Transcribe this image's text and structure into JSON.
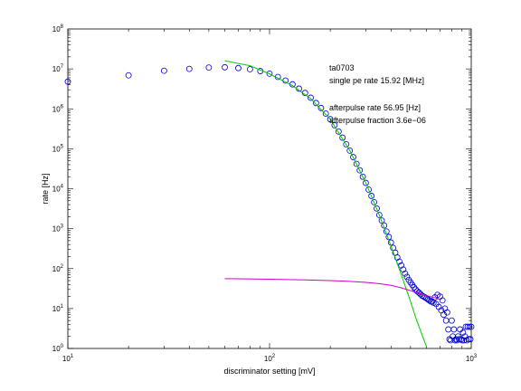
{
  "chart_data": {
    "type": "scatter",
    "title": "",
    "xlabel": "discriminator setting [mV]",
    "ylabel": "rate [Hz]",
    "xscale": "log",
    "yscale": "log",
    "xlim": [
      10,
      1000
    ],
    "ylim": [
      1,
      100000000
    ],
    "x_ticks": [
      {
        "value": 10,
        "base": "10",
        "exp": "1"
      },
      {
        "value": 100,
        "base": "10",
        "exp": "2"
      },
      {
        "value": 1000,
        "base": "10",
        "exp": "3"
      }
    ],
    "y_ticks": [
      {
        "value": 1,
        "base": "10",
        "exp": "0"
      },
      {
        "value": 10,
        "base": "10",
        "exp": "1"
      },
      {
        "value": 100,
        "base": "10",
        "exp": "2"
      },
      {
        "value": 1000,
        "base": "10",
        "exp": "3"
      },
      {
        "value": 10000,
        "base": "10",
        "exp": "4"
      },
      {
        "value": 100000,
        "base": "10",
        "exp": "5"
      },
      {
        "value": 1000000,
        "base": "10",
        "exp": "6"
      },
      {
        "value": 10000000,
        "base": "10",
        "exp": "7"
      },
      {
        "value": 100000000,
        "base": "10",
        "exp": "8"
      }
    ],
    "grid": false,
    "colors": {
      "data": "#0000cc",
      "fit_single_pe": "#00cc00",
      "fit_afterpulse": "#cc00cc"
    },
    "annotations": [
      "ta0703",
      "single pe rate 15.92 [MHz]",
      "afterpulse rate 56.95 [Hz]",
      "afterpulse fraction 3.6e−06"
    ],
    "series": [
      {
        "kind": "markers",
        "color": "#0000cc",
        "points": [
          [
            10,
            4800000.0
          ],
          [
            20,
            6900000.0
          ],
          [
            30,
            9000000.0
          ],
          [
            40,
            10000000.0
          ],
          [
            50,
            10800000.0
          ],
          [
            60,
            11000000.0
          ],
          [
            70,
            10500000.0
          ],
          [
            80,
            9800000.0
          ],
          [
            90,
            8800000.0
          ],
          [
            100,
            7600000.0
          ],
          [
            110,
            6300000.0
          ],
          [
            120,
            5100000.0
          ],
          [
            130,
            4100000.0
          ],
          [
            140,
            3200000.0
          ],
          [
            150,
            2500000.0
          ],
          [
            160,
            1900000.0
          ],
          [
            170,
            1400000.0
          ],
          [
            180,
            1050000.0
          ],
          [
            190,
            760000.0
          ],
          [
            200,
            550000.0
          ],
          [
            210,
            390000.0
          ],
          [
            220,
            270000.0
          ],
          [
            230,
            190000.0
          ],
          [
            240,
            130000.0
          ],
          [
            250,
            90000.0
          ],
          [
            260,
            62000.0
          ],
          [
            270,
            42000.0
          ],
          [
            280,
            29000.0
          ],
          [
            290,
            20000.0
          ],
          [
            300,
            14000.0
          ],
          [
            310,
            9500.0
          ],
          [
            320,
            6600.0
          ],
          [
            330,
            4600.0
          ],
          [
            340,
            3200.0
          ],
          [
            350,
            2200.0
          ],
          [
            360,
            1600.0
          ],
          [
            370,
            1200.0
          ],
          [
            380,
            850.0
          ],
          [
            390,
            620.0
          ],
          [
            400,
            450.0
          ],
          [
            410,
            330.0
          ],
          [
            420,
            250.0
          ],
          [
            430,
            190.0
          ],
          [
            440,
            150.0
          ],
          [
            450,
            120.0
          ],
          [
            460,
            95.0
          ],
          [
            470,
            75.0
          ],
          [
            480,
            62.0
          ],
          [
            490,
            52.0
          ],
          [
            500,
            45.0
          ],
          [
            510,
            39.0
          ],
          [
            520,
            34.0
          ],
          [
            530,
            30.0
          ],
          [
            540,
            27.0
          ],
          [
            550,
            25.0
          ],
          [
            560,
            23.0
          ],
          [
            570,
            21.0
          ],
          [
            580,
            20.0
          ],
          [
            590,
            19.0
          ],
          [
            600,
            18.0
          ],
          [
            610,
            17.0
          ],
          [
            620,
            16.0
          ],
          [
            630,
            15.0
          ],
          [
            640,
            15.0
          ],
          [
            650,
            14.0
          ],
          [
            660,
            19.0
          ],
          [
            670,
            13.0
          ],
          [
            680,
            22.0
          ],
          [
            690,
            11.0
          ],
          [
            700,
            20.0
          ],
          [
            710,
            9.0
          ],
          [
            720,
            16.0
          ],
          [
            730,
            7.0
          ],
          [
            740,
            10.0
          ],
          [
            750,
            5.0
          ],
          [
            760,
            8.0
          ],
          [
            770,
            3.0
          ],
          [
            780,
            1.7
          ],
          [
            790,
            1.6
          ],
          [
            800,
            5.0
          ],
          [
            810,
            2.0
          ],
          [
            820,
            3.0
          ],
          [
            830,
            1.6
          ],
          [
            840,
            1.7
          ],
          [
            850,
            1.6
          ],
          [
            860,
            2.0
          ],
          [
            870,
            1.7
          ],
          [
            880,
            3.0
          ],
          [
            890,
            1.7
          ],
          [
            900,
            1.6
          ],
          [
            910,
            2.5
          ],
          [
            920,
            1.6
          ],
          [
            930,
            2.0
          ],
          [
            940,
            3.5
          ],
          [
            950,
            1.6
          ],
          [
            960,
            3.5
          ],
          [
            970,
            1.7
          ],
          [
            980,
            3.5
          ],
          [
            990,
            1.7
          ],
          [
            1000,
            3.5
          ]
        ]
      },
      {
        "kind": "line",
        "color": "#00cc00",
        "points": [
          [
            60,
            16000000.0
          ],
          [
            80,
            12000000.0
          ],
          [
            100,
            7500000.0
          ],
          [
            130,
            3800000.0
          ],
          [
            160,
            1800000.0
          ],
          [
            200,
            550000.0
          ],
          [
            250,
            90000.0
          ],
          [
            300,
            14000.0
          ],
          [
            350,
            2200.0
          ],
          [
            400,
            370.0
          ],
          [
            450,
            70.0
          ],
          [
            500,
            15.0
          ],
          [
            530,
            6.0
          ],
          [
            560,
            2.8
          ],
          [
            600,
            1.1
          ]
        ]
      },
      {
        "kind": "line",
        "color": "#cc00cc",
        "points": [
          [
            60,
            56
          ],
          [
            100,
            54
          ],
          [
            150,
            52
          ],
          [
            200,
            50
          ],
          [
            250,
            48
          ],
          [
            300,
            45
          ],
          [
            350,
            42
          ],
          [
            400,
            38
          ],
          [
            450,
            33
          ],
          [
            500,
            28
          ],
          [
            550,
            24
          ],
          [
            600,
            21
          ],
          [
            650,
            19
          ],
          [
            700,
            17
          ]
        ]
      }
    ]
  }
}
